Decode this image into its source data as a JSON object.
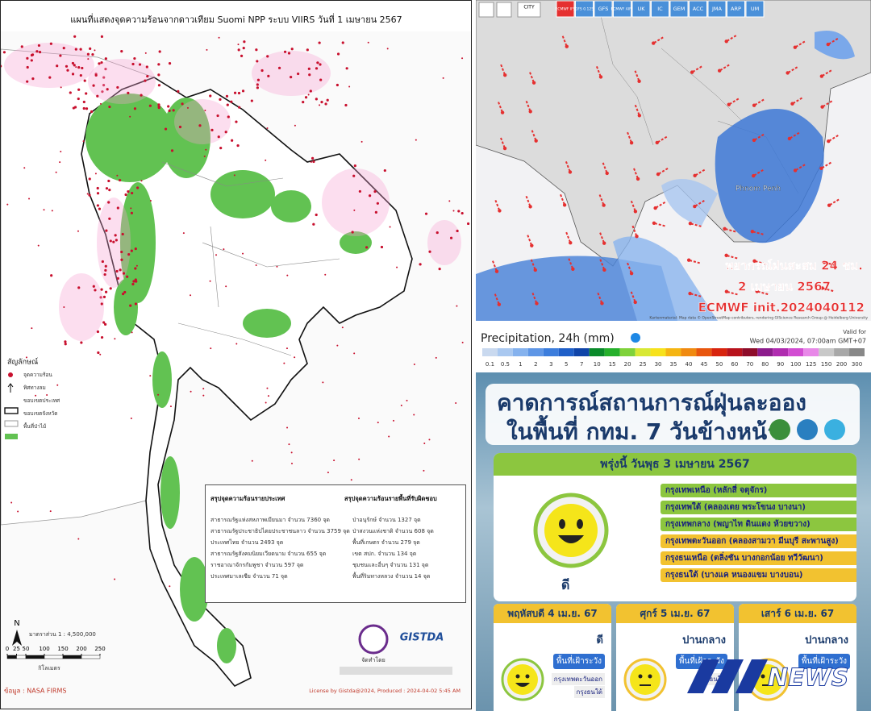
{
  "hotspot_map": {
    "title": "แผนที่แสดงจุดความร้อนจากดาวเทียม Suomi NPP ระบบ VIIRS  วันที่ 1 เมษายน 2567",
    "legend_title": "สัญลักษณ์",
    "legend_items": [
      "จุดความร้อน",
      "ทิศทางลม",
      "ขอบเขตประเทศ",
      "ขอบเขตจังหวัด",
      "พื้นที่ป่าไม้"
    ],
    "country_title": "สรุปจุดความร้อนรายประเทศ",
    "country_rows": [
      "สาธารณรัฐแห่งสหภาพเมียนมา  จำนวน 7360 จุด",
      "สาธารณรัฐประชาธิปไตยประชาชนลาว  จำนวน 3759 จุด",
      "ประเทศไทย  จำนวน 2493 จุด",
      "สาธารณรัฐสังคมนิยมเวียดนาม  จำนวน 655 จุด",
      "ราชอาณาจักรกัมพูชา  จำนวน 597 จุด",
      "ประเทศมาเลเซีย  จำนวน 71 จุด"
    ],
    "area_title": "สรุปจุดความร้อนรายพื้นที่รับผิดชอบ",
    "area_rows": [
      "ป่าอนุรักษ์  จำนวน 1327 จุด",
      "ป่าสงวนแห่งชาติ  จำนวน 608 จุด",
      "พื้นที่เกษตร  จำนวน 279 จุด",
      "เขต สปก.  จำนวน 134 จุด",
      "ชุมชนและอื่นๆ  จำนวน 131 จุด",
      "พื้นที่ริมทางหลวง  จำนวน 14 จุด"
    ],
    "north": "N",
    "scale_text": "มาตราส่วน 1 : 4,500,000",
    "scale_ticks": [
      0,
      25,
      50,
      100,
      150,
      200,
      250
    ],
    "scale_unit": "กิโลเมตร",
    "source": "ข้อมูล : NASA FIRMS",
    "made_by": "จัดทำโดย",
    "agency": "GISTDA",
    "license": "License by Gistda@2024, Produced :  2024-04-02 5:45 AM"
  },
  "weather_map": {
    "city_button": "CITY",
    "buttons": [
      "ECMWF IFS",
      "GFS 0.125",
      "GFS",
      "ECMWF AIFS",
      "UK",
      "IC",
      "GEM",
      "ACC",
      "JMA",
      "ARP",
      "UM"
    ],
    "place": "Phnom Penh",
    "overlay": [
      "พยากรณ์ฝนสะสม 24 ชม.",
      "2 เมษายน 2567",
      "ECMWF init.2024040112"
    ],
    "attribution": "Kartenmaterial: Map data © OpenStreetMap contributors, rendering GIScience Research Group @ Heidelberg University"
  },
  "precip_legend": {
    "title": "Precipitation, 24h (mm)",
    "valid_label": "Valid for",
    "valid_time": "Wed 04/03/2024, 07:00am GMT+07",
    "ticks": [
      0.1,
      0.5,
      1,
      2,
      3,
      5,
      7,
      10,
      15,
      20,
      25,
      30,
      35,
      40,
      45,
      50,
      60,
      70,
      80,
      90,
      100,
      125,
      150,
      200,
      300
    ],
    "colors": [
      "#c9d9ef",
      "#a9c8f0",
      "#85b2ee",
      "#5e96e6",
      "#3c7ddc",
      "#1f5fc8",
      "#0f44a8",
      "#0a8a2a",
      "#26b02c",
      "#7fd23a",
      "#d8e834",
      "#f7e21c",
      "#f5b512",
      "#f08a10",
      "#e8560e",
      "#d8240e",
      "#b8121c",
      "#8e0c2a",
      "#8c1c8c",
      "#b02cb0",
      "#d24cd2",
      "#e888e8",
      "#c8c8c8",
      "#a8a8a8",
      "#888888"
    ]
  },
  "dust_forecast": {
    "title_line1": "คาดการณ์สถานการณ์ฝุ่นละออง",
    "title_line2": "ในพื้นที่ กทม. 7 วันข้างหน้า",
    "today_header": "พรุ่งนี้ วันพุธ 3 เมษายน 2567",
    "today_level": "ดี",
    "zones": [
      {
        "label": "กรุงเทพเหนือ (หลักสี่ จตุจักร)",
        "color": "#8cc63f"
      },
      {
        "label": "กรุงเทพใต้ (คลองเตย พระโขนง บางนา)",
        "color": "#8cc63f"
      },
      {
        "label": "กรุงเทพกลาง (พญาไท ดินแดง ห้วยขวาง)",
        "color": "#8cc63f"
      },
      {
        "label": "กรุงเทพตะวันออก (คลองสามวา มีนบุรี สะพานสูง)",
        "color": "#f2c230"
      },
      {
        "label": "กรุงธนเหนือ (ตลิ่งชัน บางกอกน้อย ทวีวัฒนา)",
        "color": "#f2c230"
      },
      {
        "label": "กรุงธนใต้ (บางแค หนองแขม บางบอน)",
        "color": "#f2c230"
      }
    ],
    "days": [
      {
        "header": "พฤหัสบดี 4 เม.ย. 67",
        "level": "ดี",
        "watch": "พื้นที่เฝ้าระวัง",
        "areas": [
          "กรุงเทพตะวันออก",
          "กรุงธนใต้"
        ]
      },
      {
        "header": "ศุกร์ 5 เม.ย. 67",
        "level": "ปานกลาง",
        "watch": "พื้นที่เฝ้าระวัง",
        "areas": [
          "กรุงธนใต้"
        ]
      },
      {
        "header": "เสาร์ 6 เม.ย. 67",
        "level": "ปานกลาง",
        "watch": "พื้นที่เฝ้าระวัง",
        "areas": []
      }
    ],
    "logo": "NEWS"
  }
}
